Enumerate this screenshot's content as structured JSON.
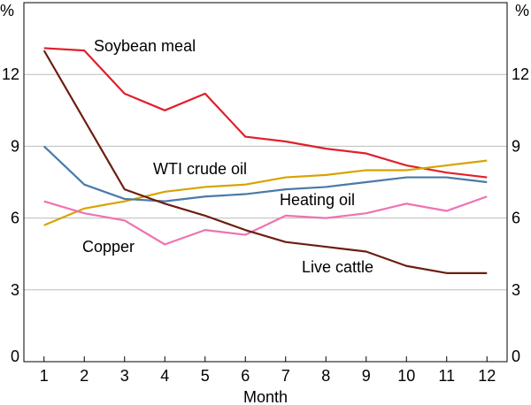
{
  "chart_data": {
    "type": "line",
    "x": [
      1,
      2,
      3,
      4,
      5,
      6,
      7,
      8,
      9,
      10,
      11,
      12
    ],
    "xlabel": "Month",
    "ylabel_left": "%",
    "ylabel_right": "%",
    "ylim": [
      0,
      15
    ],
    "yticks": [
      0,
      3,
      6,
      9,
      12
    ],
    "grid": true,
    "series": [
      {
        "name": "Soybean meal",
        "color": "#e0202a",
        "values": [
          13.1,
          13.0,
          11.2,
          10.5,
          11.2,
          9.4,
          9.2,
          8.9,
          8.7,
          8.2,
          7.9,
          7.7
        ]
      },
      {
        "name": "WTI crude oil",
        "color": "#d8a300",
        "values": [
          5.7,
          6.4,
          6.7,
          7.1,
          7.3,
          7.4,
          7.7,
          7.8,
          8.0,
          8.0,
          8.2,
          8.4
        ]
      },
      {
        "name": "Heating oil",
        "color": "#4a7aa8",
        "values": [
          9.0,
          7.4,
          6.8,
          6.7,
          6.9,
          7.0,
          7.2,
          7.3,
          7.5,
          7.7,
          7.7,
          7.5
        ]
      },
      {
        "name": "Copper",
        "color": "#ef72b2",
        "values": [
          6.7,
          6.2,
          5.9,
          4.9,
          5.5,
          5.3,
          6.1,
          6.0,
          6.2,
          6.6,
          6.3,
          6.9
        ]
      },
      {
        "name": "Live cattle",
        "color": "#6b1e10",
        "values": [
          13.0,
          10.1,
          7.2,
          6.6,
          6.1,
          5.5,
          5.0,
          4.8,
          4.6,
          4.0,
          3.7,
          3.7
        ]
      }
    ]
  }
}
